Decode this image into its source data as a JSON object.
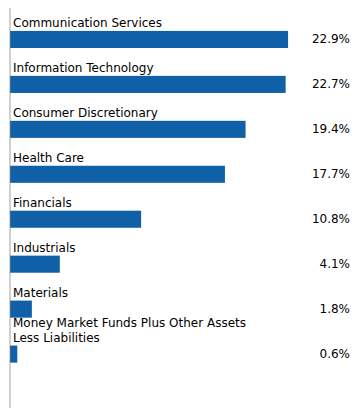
{
  "chart_data": {
    "type": "bar",
    "orientation": "horizontal",
    "categories": [
      "Communication Services",
      "Information Technology",
      "Consumer Discretionary",
      "Health Care",
      "Financials",
      "Industrials",
      "Materials",
      "Money Market Funds Plus Other Assets\nLess Liabilities"
    ],
    "values": [
      22.9,
      22.7,
      19.4,
      17.7,
      10.8,
      4.1,
      1.8,
      0.6
    ],
    "value_labels": [
      "22.9%",
      "22.7%",
      "19.4%",
      "17.7%",
      "10.8%",
      "4.1%",
      "1.8%",
      "0.6%"
    ],
    "color": "#1060A8",
    "xlim": [
      0,
      28
    ],
    "data_labels": true,
    "tick_labels": false,
    "grid": false
  }
}
